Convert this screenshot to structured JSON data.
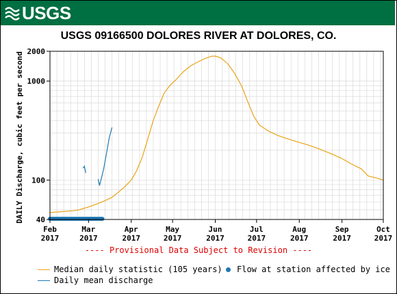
{
  "header": {
    "logo_text": "USGS",
    "banner_color": "#006f41"
  },
  "chart_data": {
    "type": "line",
    "title": "USGS 09166500 DOLORES RIVER AT DOLORES, CO.",
    "ylabel": "DAILY Discharge, cubic feet per second",
    "xlabel": "",
    "yscale": "log",
    "ylim": [
      40,
      2000
    ],
    "yticks": [
      40,
      100,
      1000,
      2000
    ],
    "xlim": [
      "2017-02-01",
      "2017-10-01"
    ],
    "xticks": [
      {
        "date": "2017-02-01",
        "label": "Feb",
        "year": "2017"
      },
      {
        "date": "2017-03-01",
        "label": "Mar",
        "year": "2017"
      },
      {
        "date": "2017-04-01",
        "label": "Apr",
        "year": "2017"
      },
      {
        "date": "2017-05-01",
        "label": "May",
        "year": "2017"
      },
      {
        "date": "2017-06-01",
        "label": "Jun",
        "year": "2017"
      },
      {
        "date": "2017-07-01",
        "label": "Jul",
        "year": "2017"
      },
      {
        "date": "2017-08-01",
        "label": "Aug",
        "year": "2017"
      },
      {
        "date": "2017-09-01",
        "label": "Sep",
        "year": "2017"
      },
      {
        "date": "2017-10-01",
        "label": "Oct",
        "year": "2017"
      }
    ],
    "grid": true,
    "series": [
      {
        "name": "Median daily statistic (105 years)",
        "color": "#e8a317",
        "points": [
          [
            "2017-02-01",
            47
          ],
          [
            "2017-02-10",
            48
          ],
          [
            "2017-02-18",
            49
          ],
          [
            "2017-02-22",
            50
          ],
          [
            "2017-02-26",
            52
          ],
          [
            "2017-03-02",
            54
          ],
          [
            "2017-03-08",
            58
          ],
          [
            "2017-03-13",
            62
          ],
          [
            "2017-03-18",
            67
          ],
          [
            "2017-03-22",
            74
          ],
          [
            "2017-03-27",
            85
          ],
          [
            "2017-04-01",
            100
          ],
          [
            "2017-04-05",
            125
          ],
          [
            "2017-04-09",
            170
          ],
          [
            "2017-04-13",
            260
          ],
          [
            "2017-04-17",
            400
          ],
          [
            "2017-04-21",
            560
          ],
          [
            "2017-04-25",
            760
          ],
          [
            "2017-04-29",
            900
          ],
          [
            "2017-05-04",
            1050
          ],
          [
            "2017-05-09",
            1250
          ],
          [
            "2017-05-14",
            1420
          ],
          [
            "2017-05-19",
            1550
          ],
          [
            "2017-05-24",
            1680
          ],
          [
            "2017-05-29",
            1780
          ],
          [
            "2017-06-01",
            1790
          ],
          [
            "2017-06-05",
            1720
          ],
          [
            "2017-06-10",
            1500
          ],
          [
            "2017-06-15",
            1200
          ],
          [
            "2017-06-20",
            900
          ],
          [
            "2017-06-25",
            600
          ],
          [
            "2017-06-29",
            440
          ],
          [
            "2017-07-03",
            360
          ],
          [
            "2017-07-10",
            310
          ],
          [
            "2017-07-17",
            280
          ],
          [
            "2017-07-24",
            260
          ],
          [
            "2017-08-01",
            240
          ],
          [
            "2017-08-08",
            225
          ],
          [
            "2017-08-16",
            205
          ],
          [
            "2017-08-24",
            185
          ],
          [
            "2017-09-01",
            165
          ],
          [
            "2017-09-08",
            145
          ],
          [
            "2017-09-15",
            130
          ],
          [
            "2017-09-20",
            110
          ],
          [
            "2017-09-26",
            105
          ],
          [
            "2017-10-01",
            100
          ]
        ]
      },
      {
        "name": "Daily mean discharge",
        "color": "#1f78b4",
        "segments": [
          [
            [
              "2017-02-25",
              132
            ],
            [
              "2017-02-26",
              138
            ],
            [
              "2017-02-27",
              118
            ]
          ],
          [
            [
              "2017-03-08",
              102
            ],
            [
              "2017-03-09",
              88
            ],
            [
              "2017-03-10",
              100
            ],
            [
              "2017-03-12",
              130
            ],
            [
              "2017-03-14",
              185
            ],
            [
              "2017-03-16",
              265
            ],
            [
              "2017-03-18",
              340
            ]
          ]
        ]
      },
      {
        "name": "Flow at station affected by ice",
        "color": "#1f78b4",
        "marker": "dot",
        "date_range": [
          "2017-02-01",
          "2017-03-11"
        ],
        "value": 40
      }
    ]
  },
  "provisional_text": "---- Provisional Data Subject to Revision ----",
  "legend": {
    "median_label": "Median daily statistic (105 years)",
    "ice_label": "Flow at station affected by ice",
    "discharge_label": "Daily mean discharge"
  }
}
